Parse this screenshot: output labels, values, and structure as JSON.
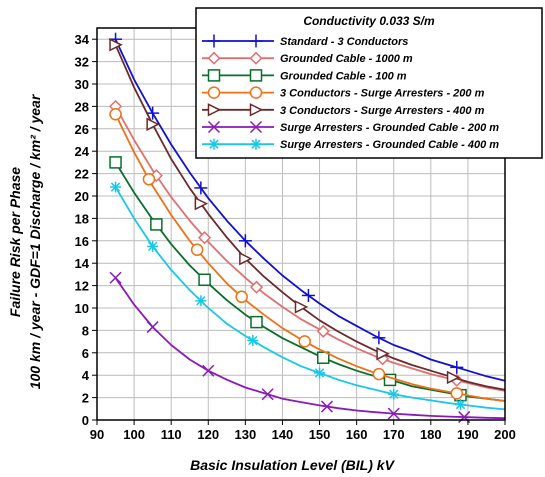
{
  "chart_data": {
    "type": "line",
    "title": "",
    "xlabel": "Basic Insulation Level (BIL) kV",
    "ylabel_line1": "Failure Risk per Phase",
    "ylabel_line2": "100 km / year - GDF=1 Discharge / km² / year",
    "xlim": [
      90,
      200
    ],
    "ylim": [
      0,
      35
    ],
    "x_ticks": [
      90,
      100,
      110,
      120,
      130,
      140,
      150,
      160,
      170,
      180,
      190,
      200
    ],
    "y_ticks": [
      0,
      2,
      4,
      6,
      8,
      10,
      12,
      14,
      16,
      18,
      20,
      22,
      24,
      26,
      28,
      30,
      32,
      34
    ],
    "grid": true,
    "legend_title": "Conductivity 0.033 S/m",
    "legend_position": "top-right",
    "series": [
      {
        "name": "Standard - 3 Conductors",
        "color": "#1010d0",
        "marker": "plus",
        "x": [
          95,
          100,
          105,
          110,
          115,
          120,
          125,
          130,
          135,
          140,
          145,
          150,
          155,
          160,
          165,
          170,
          175,
          180,
          185,
          190,
          195,
          200
        ],
        "y": [
          34.0,
          30.4,
          27.4,
          24.6,
          22.1,
          19.8,
          17.8,
          16.0,
          14.4,
          12.9,
          11.6,
          10.4,
          9.3,
          8.4,
          7.5,
          6.7,
          6.1,
          5.4,
          4.9,
          4.4,
          3.9,
          3.5
        ],
        "markers_x": [
          95,
          105,
          118,
          130,
          147,
          166,
          187
        ]
      },
      {
        "name": "Grounded Cable - 1000 m",
        "color": "#e07070",
        "marker": "diamond",
        "x": [
          95,
          100,
          105,
          110,
          115,
          120,
          125,
          130,
          135,
          140,
          145,
          150,
          155,
          160,
          165,
          170,
          175,
          180,
          185,
          190,
          195,
          200
        ],
        "y": [
          28.0,
          25.0,
          22.3,
          19.9,
          17.8,
          15.9,
          14.2,
          12.7,
          11.3,
          10.1,
          9.0,
          8.1,
          7.2,
          6.4,
          5.7,
          5.1,
          4.6,
          4.1,
          3.7,
          3.3,
          2.9,
          2.6
        ],
        "markers_x": [
          95,
          106,
          119,
          133,
          151,
          167,
          187
        ]
      },
      {
        "name": "Grounded Cable - 100 m",
        "color": "#0a6e2a",
        "marker": "square",
        "x": [
          95,
          100,
          105,
          110,
          115,
          120,
          125,
          130,
          135,
          140,
          145,
          150,
          155,
          160,
          165,
          170,
          175,
          180,
          185,
          190,
          195,
          200
        ],
        "y": [
          23.0,
          20.3,
          17.9,
          15.7,
          13.8,
          12.2,
          10.7,
          9.4,
          8.3,
          7.3,
          6.5,
          5.7,
          5.0,
          4.4,
          3.9,
          3.5,
          3.0,
          2.7,
          2.4,
          2.1,
          1.9,
          1.7
        ],
        "markers_x": [
          95,
          106,
          119,
          133,
          151,
          169,
          188
        ]
      },
      {
        "name": "3 Conductors - Surge Arresters - 200 m",
        "color": "#f07018",
        "marker": "circle",
        "x": [
          95,
          100,
          105,
          110,
          115,
          120,
          125,
          130,
          135,
          140,
          145,
          150,
          155,
          160,
          165,
          170,
          175,
          180,
          185,
          190,
          195,
          200
        ],
        "y": [
          27.3,
          23.9,
          20.9,
          18.3,
          16.0,
          14.0,
          12.2,
          10.7,
          9.4,
          8.2,
          7.2,
          6.3,
          5.5,
          4.8,
          4.2,
          3.7,
          3.2,
          2.8,
          2.5,
          2.2,
          1.9,
          1.7
        ],
        "markers_x": [
          95,
          104,
          117,
          129,
          146,
          166,
          187
        ]
      },
      {
        "name": "3 Conductors - Surge Arresters - 400 m",
        "color": "#6a2a2a",
        "marker": "triangle-right",
        "x": [
          95,
          100,
          105,
          110,
          115,
          120,
          125,
          130,
          135,
          140,
          145,
          150,
          155,
          160,
          165,
          170,
          175,
          180,
          185,
          190,
          195,
          200
        ],
        "y": [
          33.5,
          29.7,
          26.4,
          23.3,
          20.7,
          18.4,
          16.3,
          14.4,
          12.8,
          11.4,
          10.1,
          8.9,
          7.9,
          7.0,
          6.2,
          5.5,
          4.9,
          4.4,
          3.9,
          3.4,
          3.0,
          2.7
        ],
        "markers_x": [
          95,
          105,
          118,
          130,
          145,
          167,
          186
        ]
      },
      {
        "name": "Surge Arresters - Grounded Cable - 200 m",
        "color": "#8a1ab8",
        "marker": "x",
        "x": [
          95,
          100,
          105,
          110,
          115,
          120,
          125,
          130,
          135,
          140,
          145,
          150,
          155,
          160,
          165,
          170,
          175,
          180,
          185,
          190,
          195,
          200
        ],
        "y": [
          12.7,
          10.3,
          8.3,
          6.7,
          5.4,
          4.4,
          3.6,
          2.9,
          2.4,
          1.9,
          1.6,
          1.3,
          1.05,
          0.85,
          0.7,
          0.57,
          0.46,
          0.37,
          0.3,
          0.25,
          0.2,
          0.16
        ],
        "markers_x": [
          95,
          105,
          120,
          136,
          152,
          170,
          189
        ]
      },
      {
        "name": "Surge Arresters - Grounded Cable - 400 m",
        "color": "#18c8e8",
        "marker": "star",
        "x": [
          95,
          100,
          105,
          110,
          115,
          120,
          125,
          130,
          135,
          140,
          145,
          150,
          155,
          160,
          165,
          170,
          175,
          180,
          185,
          190,
          195,
          200
        ],
        "y": [
          20.8,
          18.0,
          15.5,
          13.4,
          11.6,
          10.0,
          8.6,
          7.5,
          6.5,
          5.6,
          4.8,
          4.2,
          3.6,
          3.1,
          2.7,
          2.3,
          2.0,
          1.75,
          1.5,
          1.3,
          1.1,
          0.95
        ],
        "markers_x": [
          95,
          105,
          118,
          132,
          150,
          170,
          188
        ]
      }
    ]
  }
}
